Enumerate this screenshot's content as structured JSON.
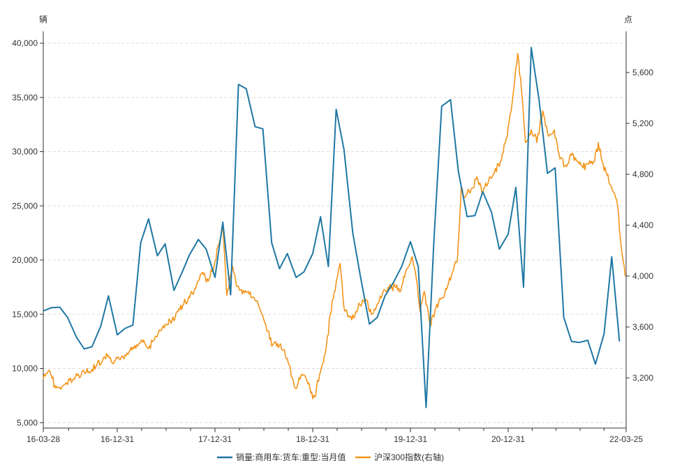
{
  "chart_data": {
    "type": "line",
    "left_axis_unit": "辆",
    "right_axis_unit": "点",
    "x_tick_labels": [
      "16-03-28",
      "16-12-31",
      "17-12-31",
      "18-12-31",
      "19-12-31",
      "20-12-31",
      "22-03-25"
    ],
    "y_left_ticks": [
      "5,000",
      "10,000",
      "15,000",
      "20,000",
      "25,000",
      "30,000",
      "35,000",
      "40,000"
    ],
    "y_right_ticks": [
      "3,200",
      "3,600",
      "4,000",
      "4,400",
      "4,800",
      "5,200",
      "5,600"
    ],
    "ylim_left": [
      4500,
      41000
    ],
    "ylim_right": [
      2900,
      5850
    ],
    "grid": true,
    "legend_position": "bottom-center",
    "series": [
      {
        "name": "销量:商用车:货车:重型:当月值",
        "axis": "left",
        "color": "#1f77a3",
        "points": [
          [
            2016.24,
            15300
          ],
          [
            2016.32,
            15600
          ],
          [
            2016.41,
            15650
          ],
          [
            2016.49,
            14700
          ],
          [
            2016.58,
            12900
          ],
          [
            2016.66,
            11800
          ],
          [
            2016.74,
            12000
          ],
          [
            2016.83,
            13900
          ],
          [
            2016.91,
            16700
          ],
          [
            2017.0,
            13100
          ],
          [
            2017.08,
            13700
          ],
          [
            2017.16,
            14000
          ],
          [
            2017.24,
            21600
          ],
          [
            2017.32,
            23800
          ],
          [
            2017.41,
            20400
          ],
          [
            2017.49,
            21500
          ],
          [
            2017.58,
            17200
          ],
          [
            2017.66,
            18800
          ],
          [
            2017.74,
            20500
          ],
          [
            2017.83,
            21900
          ],
          [
            2017.91,
            21000
          ],
          [
            2018.0,
            18400
          ],
          [
            2018.08,
            23500
          ],
          [
            2018.16,
            16800
          ],
          [
            2018.24,
            36200
          ],
          [
            2018.32,
            35800
          ],
          [
            2018.41,
            32300
          ],
          [
            2018.49,
            32100
          ],
          [
            2018.58,
            21600
          ],
          [
            2018.66,
            19200
          ],
          [
            2018.74,
            20600
          ],
          [
            2018.83,
            18400
          ],
          [
            2018.91,
            18900
          ],
          [
            2019.0,
            20600
          ],
          [
            2019.08,
            24000
          ],
          [
            2019.16,
            19400
          ],
          [
            2019.24,
            33900
          ],
          [
            2019.32,
            30200
          ],
          [
            2019.41,
            22500
          ],
          [
            2019.49,
            18400
          ],
          [
            2019.58,
            14100
          ],
          [
            2019.66,
            14700
          ],
          [
            2019.74,
            16700
          ],
          [
            2019.83,
            18000
          ],
          [
            2019.91,
            19400
          ],
          [
            2020.0,
            21700
          ],
          [
            2020.08,
            19400
          ],
          [
            2020.16,
            6400
          ],
          [
            2020.24,
            21800
          ],
          [
            2020.32,
            34200
          ],
          [
            2020.41,
            34800
          ],
          [
            2020.49,
            28200
          ],
          [
            2020.58,
            24000
          ],
          [
            2020.66,
            24100
          ],
          [
            2020.74,
            26300
          ],
          [
            2020.83,
            24400
          ],
          [
            2020.91,
            21000
          ],
          [
            2021.0,
            22400
          ],
          [
            2021.08,
            26700
          ],
          [
            2021.16,
            17500
          ],
          [
            2021.24,
            39600
          ],
          [
            2021.32,
            34900
          ],
          [
            2021.41,
            28000
          ],
          [
            2021.49,
            28500
          ],
          [
            2021.58,
            14700
          ],
          [
            2021.66,
            12500
          ],
          [
            2021.74,
            12400
          ],
          [
            2021.83,
            12600
          ],
          [
            2021.91,
            10400
          ],
          [
            2022.0,
            13200
          ],
          [
            2022.08,
            20300
          ],
          [
            2022.16,
            12500
          ]
        ]
      },
      {
        "name": "沪深300指数(右轴)",
        "axis": "right",
        "color": "#f39419",
        "points": [
          [
            2016.24,
            3190
          ],
          [
            2016.3,
            3260
          ],
          [
            2016.36,
            3140
          ],
          [
            2016.42,
            3110
          ],
          [
            2016.48,
            3160
          ],
          [
            2016.54,
            3180
          ],
          [
            2016.6,
            3230
          ],
          [
            2016.66,
            3250
          ],
          [
            2016.72,
            3240
          ],
          [
            2016.78,
            3290
          ],
          [
            2016.84,
            3320
          ],
          [
            2016.9,
            3370
          ],
          [
            2016.96,
            3310
          ],
          [
            2017.02,
            3350
          ],
          [
            2017.08,
            3380
          ],
          [
            2017.14,
            3440
          ],
          [
            2017.2,
            3460
          ],
          [
            2017.26,
            3480
          ],
          [
            2017.32,
            3430
          ],
          [
            2017.38,
            3500
          ],
          [
            2017.44,
            3570
          ],
          [
            2017.5,
            3620
          ],
          [
            2017.56,
            3650
          ],
          [
            2017.62,
            3720
          ],
          [
            2017.68,
            3780
          ],
          [
            2017.74,
            3830
          ],
          [
            2017.8,
            3900
          ],
          [
            2017.86,
            4020
          ],
          [
            2017.92,
            3980
          ],
          [
            2017.98,
            4040
          ],
          [
            2018.04,
            4250
          ],
          [
            2018.08,
            4380
          ],
          [
            2018.12,
            3850
          ],
          [
            2018.18,
            4080
          ],
          [
            2018.22,
            3920
          ],
          [
            2018.28,
            3860
          ],
          [
            2018.34,
            3880
          ],
          [
            2018.4,
            3830
          ],
          [
            2018.46,
            3740
          ],
          [
            2018.52,
            3620
          ],
          [
            2018.58,
            3450
          ],
          [
            2018.64,
            3470
          ],
          [
            2018.7,
            3420
          ],
          [
            2018.76,
            3300
          ],
          [
            2018.82,
            3120
          ],
          [
            2018.88,
            3220
          ],
          [
            2018.94,
            3180
          ],
          [
            2018.98,
            3080
          ],
          [
            2019.02,
            3050
          ],
          [
            2019.08,
            3250
          ],
          [
            2019.14,
            3450
          ],
          [
            2019.18,
            3700
          ],
          [
            2019.24,
            3950
          ],
          [
            2019.28,
            4100
          ],
          [
            2019.32,
            3750
          ],
          [
            2019.36,
            3680
          ],
          [
            2019.42,
            3670
          ],
          [
            2019.48,
            3780
          ],
          [
            2019.54,
            3820
          ],
          [
            2019.6,
            3700
          ],
          [
            2019.66,
            3780
          ],
          [
            2019.72,
            3880
          ],
          [
            2019.78,
            3900
          ],
          [
            2019.84,
            3920
          ],
          [
            2019.9,
            3880
          ],
          [
            2019.96,
            4050
          ],
          [
            2020.02,
            4150
          ],
          [
            2020.06,
            3980
          ],
          [
            2020.1,
            3720
          ],
          [
            2020.14,
            3880
          ],
          [
            2020.2,
            3620
          ],
          [
            2020.26,
            3750
          ],
          [
            2020.32,
            3830
          ],
          [
            2020.38,
            3920
          ],
          [
            2020.44,
            4050
          ],
          [
            2020.48,
            4120
          ],
          [
            2020.52,
            4700
          ],
          [
            2020.56,
            4620
          ],
          [
            2020.62,
            4680
          ],
          [
            2020.68,
            4780
          ],
          [
            2020.74,
            4650
          ],
          [
            2020.8,
            4750
          ],
          [
            2020.86,
            4820
          ],
          [
            2020.92,
            4900
          ],
          [
            2020.98,
            5080
          ],
          [
            2021.04,
            5350
          ],
          [
            2021.1,
            5750
          ],
          [
            2021.14,
            5450
          ],
          [
            2021.18,
            5050
          ],
          [
            2021.24,
            5150
          ],
          [
            2021.3,
            5050
          ],
          [
            2021.36,
            5300
          ],
          [
            2021.42,
            5100
          ],
          [
            2021.48,
            5150
          ],
          [
            2021.54,
            4920
          ],
          [
            2021.6,
            4870
          ],
          [
            2021.66,
            4950
          ],
          [
            2021.72,
            4900
          ],
          [
            2021.78,
            4850
          ],
          [
            2021.84,
            4880
          ],
          [
            2021.9,
            4900
          ],
          [
            2021.94,
            5050
          ],
          [
            2021.98,
            4900
          ],
          [
            2022.02,
            4820
          ],
          [
            2022.06,
            4720
          ],
          [
            2022.1,
            4660
          ],
          [
            2022.14,
            4560
          ],
          [
            2022.18,
            4220
          ],
          [
            2022.22,
            4000
          ]
        ]
      }
    ]
  }
}
